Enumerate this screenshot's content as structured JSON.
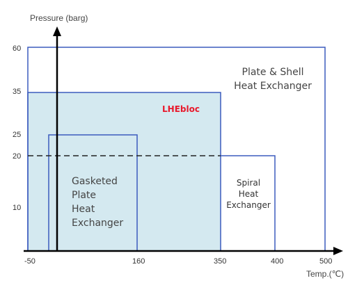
{
  "chart_data": {
    "type": "region-diagram",
    "xlabel": "Temp.(℃)",
    "ylabel": "Pressure (barg)",
    "x_ticks": [
      "-50",
      "160",
      "350",
      "400",
      "500"
    ],
    "y_ticks": [
      "60",
      "35",
      "25",
      "20",
      "10"
    ],
    "regions": [
      {
        "name_lines": [
          "Plate & Shell",
          "Heat Exchanger"
        ],
        "x_range": [
          -50,
          500
        ],
        "y_range": [
          0,
          60
        ],
        "fill": "none"
      },
      {
        "name_lines": [
          "LHEbloc"
        ],
        "x_range": [
          -50,
          350
        ],
        "y_range": [
          0,
          35
        ],
        "fill": "#d4e9f0"
      },
      {
        "name_lines": [
          "Gasketed",
          "Plate",
          "Heat",
          "Exchanger"
        ],
        "x_range": [
          -30,
          160
        ],
        "y_range": [
          0,
          25
        ],
        "fill": "none"
      },
      {
        "name_lines": [
          "Spiral",
          "Heat",
          "Exchanger"
        ],
        "x_range": [
          350,
          400
        ],
        "y_range": [
          0,
          20
        ],
        "fill": "none"
      }
    ],
    "reference_line": {
      "y": 20,
      "style": "dashed"
    }
  },
  "colors": {
    "region_stroke": "#3b5bbd",
    "lhebloc_fill": "#d4e9f0",
    "lhebloc_label": "#e8192c",
    "axis": "#000000"
  }
}
